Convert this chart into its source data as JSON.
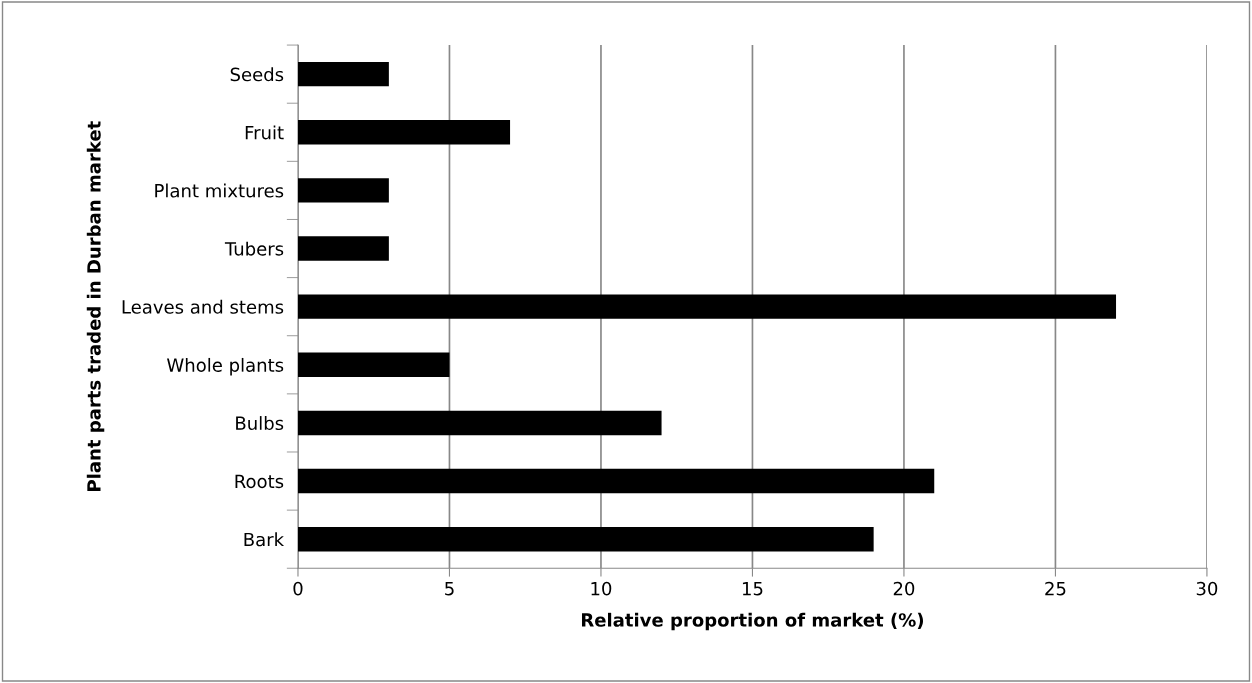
{
  "chart_data": {
    "type": "bar",
    "orientation": "horizontal",
    "categories": [
      "Seeds",
      "Fruit",
      "Plant mixtures",
      "Tubers",
      "Leaves and stems",
      "Whole plants",
      "Bulbs",
      "Roots",
      "Bark"
    ],
    "values": [
      3,
      7,
      3,
      3,
      27,
      5,
      12,
      21,
      19
    ],
    "color": "#000000",
    "xlabel": "Relative proportion of market (%)",
    "ylabel": "Plant parts traded in Durban market",
    "xlim": [
      0,
      30
    ],
    "xticks": [
      0,
      5,
      10,
      15,
      20,
      25,
      30
    ],
    "grid": "x",
    "legend": false
  }
}
